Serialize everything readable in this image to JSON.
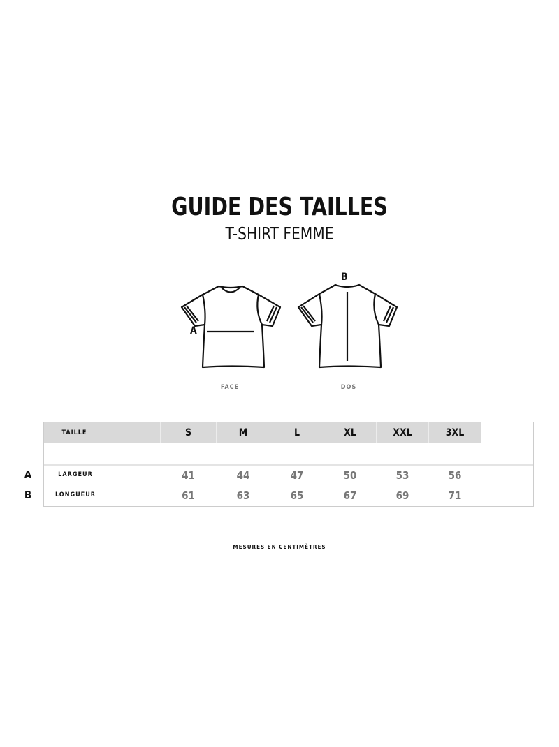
{
  "title": "GUIDE DES TAILLES",
  "subtitle": "T-SHIRT FEMME",
  "diagram": {
    "front_label": "FACE",
    "back_label": "DOS",
    "marker_a": "A",
    "marker_b": "B"
  },
  "table": {
    "header_label": "TAILLE",
    "sizes": [
      "S",
      "M",
      "L",
      "XL",
      "XXL",
      "3XL"
    ],
    "rows": [
      {
        "letter": "A",
        "label": "LARGEUR",
        "values": [
          "41",
          "44",
          "47",
          "50",
          "53",
          "56"
        ]
      },
      {
        "letter": "B",
        "label": "LONGUEUR",
        "values": [
          "61",
          "63",
          "65",
          "67",
          "69",
          "71"
        ]
      }
    ]
  },
  "note": "MESURES EN CENTIMÈTRES"
}
